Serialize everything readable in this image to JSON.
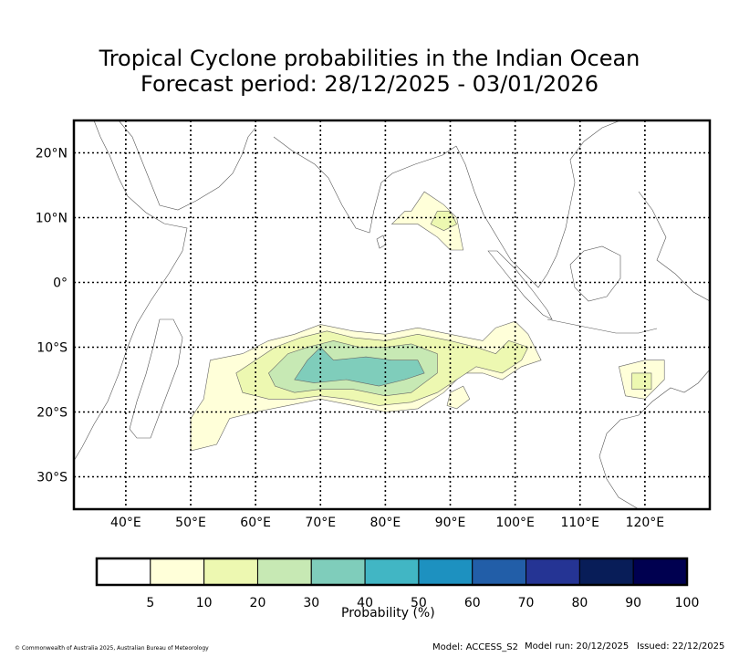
{
  "title": {
    "line1": "Tropical Cyclone probabilities in the Indian Ocean",
    "line2": "Forecast period: 28/12/2025 - 03/01/2026"
  },
  "map": {
    "lon_range": [
      32,
      130
    ],
    "lat_range": [
      -35,
      25
    ],
    "lon_ticks": [
      {
        "value": 40,
        "label": "40°E"
      },
      {
        "value": 50,
        "label": "50°E"
      },
      {
        "value": 60,
        "label": "60°E"
      },
      {
        "value": 70,
        "label": "70°E"
      },
      {
        "value": 80,
        "label": "80°E"
      },
      {
        "value": 90,
        "label": "90°E"
      },
      {
        "value": 100,
        "label": "100°E"
      },
      {
        "value": 110,
        "label": "110°E"
      },
      {
        "value": 120,
        "label": "120°E"
      }
    ],
    "lat_ticks": [
      {
        "value": 20,
        "label": "20°N"
      },
      {
        "value": 10,
        "label": "10°N"
      },
      {
        "value": 0,
        "label": "0°"
      },
      {
        "value": -10,
        "label": "10°S"
      },
      {
        "value": -20,
        "label": "20°S"
      },
      {
        "value": -30,
        "label": "30°S"
      }
    ],
    "probability_regions": [
      {
        "level": 5,
        "color": "#ffffd9",
        "name": "bay-of-bengal-5",
        "points": [
          [
            84,
            11
          ],
          [
            86,
            14
          ],
          [
            89,
            12
          ],
          [
            91,
            10
          ],
          [
            92,
            5
          ],
          [
            90,
            5
          ],
          [
            88,
            7
          ],
          [
            85,
            9
          ],
          [
            81,
            9
          ],
          [
            83,
            11
          ]
        ]
      },
      {
        "level": 10,
        "color": "#edf8b1",
        "name": "bay-of-bengal-10",
        "points": [
          [
            88,
            11
          ],
          [
            90,
            11
          ],
          [
            91,
            9
          ],
          [
            89,
            8
          ],
          [
            87,
            9
          ]
        ]
      },
      {
        "level": 5,
        "color": "#ffffd9",
        "name": "south-io-west-5",
        "points": [
          [
            53,
            -12
          ],
          [
            58,
            -11
          ],
          [
            62,
            -9
          ],
          [
            66,
            -8
          ],
          [
            70,
            -6.5
          ],
          [
            75,
            -7.5
          ],
          [
            80,
            -8
          ],
          [
            85,
            -7
          ],
          [
            90,
            -8
          ],
          [
            95,
            -9
          ],
          [
            97,
            -7
          ],
          [
            100,
            -6
          ],
          [
            102,
            -8
          ],
          [
            104,
            -12
          ],
          [
            101,
            -13
          ],
          [
            98,
            -15
          ],
          [
            95,
            -14
          ],
          [
            92,
            -14
          ],
          [
            89,
            -17
          ],
          [
            85,
            -19.5
          ],
          [
            80,
            -20
          ],
          [
            75,
            -19
          ],
          [
            70,
            -18
          ],
          [
            65,
            -19
          ],
          [
            60,
            -20
          ],
          [
            56,
            -21
          ],
          [
            54,
            -25
          ],
          [
            50,
            -26
          ],
          [
            50,
            -21
          ],
          [
            52,
            -18
          ]
        ]
      },
      {
        "level": 10,
        "color": "#edf8b1",
        "name": "south-io-west-10",
        "points": [
          [
            57,
            -14
          ],
          [
            60,
            -12
          ],
          [
            63,
            -10
          ],
          [
            67,
            -8.5
          ],
          [
            71,
            -7.5
          ],
          [
            75,
            -8.5
          ],
          [
            80,
            -9
          ],
          [
            85,
            -8
          ],
          [
            90,
            -9
          ],
          [
            94,
            -10
          ],
          [
            97,
            -11
          ],
          [
            99,
            -9
          ],
          [
            102,
            -10
          ],
          [
            101,
            -12
          ],
          [
            98,
            -14
          ],
          [
            94,
            -13
          ],
          [
            91,
            -15
          ],
          [
            88,
            -17
          ],
          [
            84,
            -18.5
          ],
          [
            79,
            -19
          ],
          [
            74,
            -18
          ],
          [
            70,
            -17.5
          ],
          [
            66,
            -18
          ],
          [
            62,
            -18
          ],
          [
            58,
            -17
          ]
        ]
      },
      {
        "level": 20,
        "color": "#c7e9b4",
        "name": "south-io-west-20",
        "points": [
          [
            62,
            -14
          ],
          [
            65,
            -11
          ],
          [
            68,
            -10
          ],
          [
            72,
            -9
          ],
          [
            76,
            -10
          ],
          [
            80,
            -10
          ],
          [
            84,
            -9.5
          ],
          [
            88,
            -11
          ],
          [
            88,
            -14
          ],
          [
            84,
            -17
          ],
          [
            80,
            -17.5
          ],
          [
            75,
            -16.5
          ],
          [
            70,
            -16.5
          ],
          [
            66,
            -17
          ],
          [
            63,
            -16
          ]
        ]
      },
      {
        "level": 30,
        "color": "#7fcdbb",
        "name": "south-io-west-30",
        "points": [
          [
            66,
            -15
          ],
          [
            68,
            -12
          ],
          [
            70,
            -10
          ],
          [
            72,
            -12
          ],
          [
            77,
            -11.5
          ],
          [
            81,
            -12
          ],
          [
            85,
            -12
          ],
          [
            86,
            -14
          ],
          [
            83,
            -15
          ],
          [
            79,
            -16
          ],
          [
            74,
            -15
          ],
          [
            69,
            -15.5
          ]
        ]
      },
      {
        "level": 5,
        "color": "#ffffd9",
        "name": "timor-sea-5",
        "points": [
          [
            116,
            -13
          ],
          [
            120,
            -12
          ],
          [
            123,
            -12
          ],
          [
            123,
            -15
          ],
          [
            120,
            -18
          ],
          [
            117,
            -17.5
          ]
        ]
      },
      {
        "level": 10,
        "color": "#edf8b1",
        "name": "timor-sea-10",
        "points": [
          [
            118,
            -14
          ],
          [
            121,
            -14
          ],
          [
            121,
            -16.5
          ],
          [
            118,
            -16.5
          ]
        ]
      },
      {
        "level": 5,
        "color": "#ffffd9",
        "name": "isolated-5",
        "points": [
          [
            90,
            -17
          ],
          [
            92,
            -16
          ],
          [
            93,
            -18
          ],
          [
            91,
            -19.5
          ],
          [
            89.5,
            -19
          ]
        ]
      }
    ]
  },
  "colorbar": {
    "title": "Probability (%)",
    "levels": [
      {
        "label": "5",
        "color": "#ffffff"
      },
      {
        "label": "10",
        "color": "#ffffd9"
      },
      {
        "label": "20",
        "color": "#edf8b1"
      },
      {
        "label": "30",
        "color": "#c7e9b4"
      },
      {
        "label": "40",
        "color": "#7fcdbb"
      },
      {
        "label": "50",
        "color": "#41b6c4"
      },
      {
        "label": "60",
        "color": "#1d91c0"
      },
      {
        "label": "70",
        "color": "#225ea8"
      },
      {
        "label": "80",
        "color": "#253494"
      },
      {
        "label": "90",
        "color": "#081d58"
      },
      {
        "label": "100",
        "color": "#000050"
      }
    ]
  },
  "footer": {
    "copyright": "© Commonwealth of Australia 2025, Australian Bureau of Meteorology",
    "model": "Model: ACCESS_S2",
    "model_run": "Model run: 20/12/2025",
    "issued": "Issued: 22/12/2025"
  }
}
